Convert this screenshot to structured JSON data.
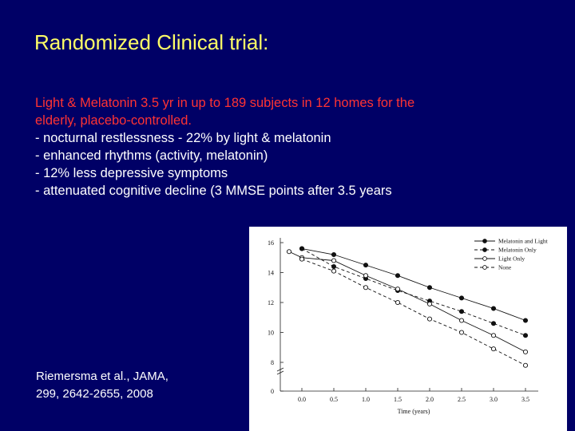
{
  "slide": {
    "title": "Randomized Clinical trial:",
    "intro_line1": "Light & Melatonin 3.5 yr in up to 189 subjects in 12 homes for the",
    "intro_line2": "elderly, placebo-controlled.",
    "bullets": [
      "- nocturnal restlessness - 22% by light & melatonin",
      "- enhanced rhythms (activity, melatonin)",
      "- 12% less depressive symptoms",
      "- attenuated cognitive decline (3 MMSE points after 3.5 years"
    ],
    "citation_line1": "Riemersma et al., JAMA,",
    "citation_line2": "299, 2642-2655, 2008"
  },
  "colors": {
    "background": "#000066",
    "title": "#ffff66",
    "intro": "#ff3333",
    "text": "#ffffff"
  },
  "chart_data": {
    "type": "line",
    "title": "",
    "xlabel": "Time (years)",
    "ylabel": "",
    "x": [
      0,
      0.5,
      1.0,
      1.5,
      2.0,
      2.5,
      3.0,
      3.5
    ],
    "x_tick_labels": [
      "0.0",
      "0.5",
      "1.0",
      "1.5",
      "2.0",
      "2.5",
      "3.0",
      "3.5"
    ],
    "y_ticks": [
      0,
      8,
      10,
      12,
      14,
      16
    ],
    "y_tick_labels": [
      "0",
      "8",
      "10",
      "12",
      "14",
      "16"
    ],
    "ylim": [
      8,
      16
    ],
    "axis_break": true,
    "x_start": -0.2,
    "grid": false,
    "legend_position": "top-right",
    "series": [
      {
        "name": "Melatonin and Light",
        "marker": "filled",
        "line": "solid",
        "x": [
          0,
          0.5,
          1.0,
          1.5,
          2.0,
          2.5,
          3.0,
          3.5
        ],
        "values": [
          15.6,
          15.2,
          14.5,
          13.8,
          13.0,
          12.3,
          11.6,
          10.8
        ]
      },
      {
        "name": "Melatonin Only",
        "marker": "filled",
        "line": "dashed",
        "x": [
          0,
          0.5,
          1.0,
          1.5,
          2.0,
          2.5,
          3.0,
          3.5
        ],
        "values": [
          15.6,
          14.4,
          13.6,
          12.8,
          12.1,
          11.4,
          10.6,
          9.8
        ]
      },
      {
        "name": "Light Only",
        "marker": "open",
        "line": "solid",
        "x": [
          -0.2,
          0,
          0.5,
          1.0,
          1.5,
          2.0,
          2.5,
          3.0,
          3.5
        ],
        "values": [
          15.4,
          15.0,
          14.8,
          13.8,
          12.9,
          11.9,
          10.8,
          9.8,
          8.7
        ]
      },
      {
        "name": "None",
        "marker": "open",
        "line": "dashed",
        "x": [
          0,
          0.5,
          1.0,
          1.5,
          2.0,
          2.5,
          3.0,
          3.5
        ],
        "values": [
          14.9,
          14.1,
          13.0,
          12.0,
          10.9,
          10.0,
          8.9,
          7.8
        ]
      }
    ]
  }
}
